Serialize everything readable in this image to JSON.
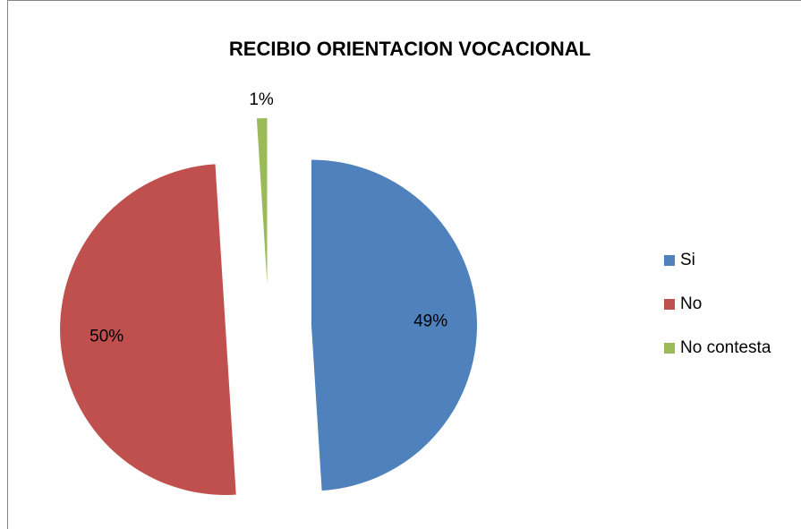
{
  "chart_data": {
    "type": "pie",
    "title": "RECIBIO ORIENTACION VOCACIONAL",
    "categories": [
      "Si",
      "No",
      "No contesta"
    ],
    "values": [
      49,
      50,
      1
    ],
    "value_labels": [
      "49%",
      "50%",
      "1%"
    ],
    "colors": [
      "#4f81bd",
      "#c0504d",
      "#9bbb59"
    ],
    "exploded": true,
    "legend": "right"
  }
}
